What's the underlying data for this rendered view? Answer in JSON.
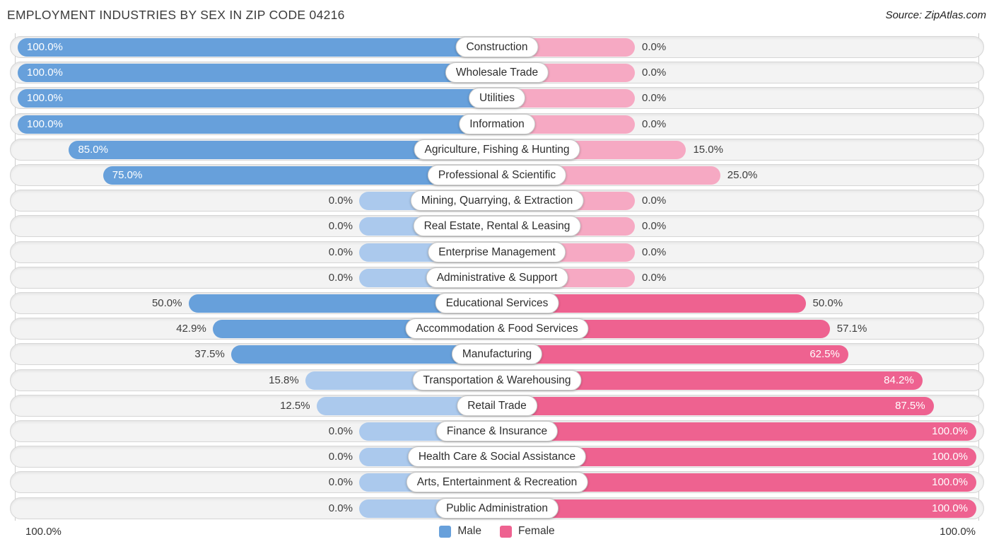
{
  "title": "EMPLOYMENT INDUSTRIES BY SEX IN ZIP CODE 04216",
  "source": "Source: ZipAtlas.com",
  "axis": {
    "left_label": "100.0%",
    "right_label": "100.0%"
  },
  "legend": {
    "male_label": "Male",
    "female_label": "Female"
  },
  "colors": {
    "male": "#67a0db",
    "male_light": "#abc9ed",
    "female": "#ee6290",
    "female_light": "#f6a9c3",
    "track": "#f3f3f3",
    "value_text": "#3d3d3d"
  },
  "chart_data": {
    "type": "bar",
    "orientation": "diverging-horizontal",
    "title": "EMPLOYMENT INDUSTRIES BY SEX IN ZIP CODE 04216",
    "xlim_left_pct": 100.0,
    "xlim_right_pct": 100.0,
    "legend_position": "bottom-center",
    "grid": "edge-lines-only",
    "categories": [
      "Construction",
      "Wholesale Trade",
      "Utilities",
      "Information",
      "Agriculture, Fishing & Hunting",
      "Professional & Scientific",
      "Mining, Quarrying, & Extraction",
      "Real Estate, Rental & Leasing",
      "Enterprise Management",
      "Administrative & Support",
      "Educational Services",
      "Accommodation & Food Services",
      "Manufacturing",
      "Transportation & Warehousing",
      "Retail Trade",
      "Finance & Insurance",
      "Health Care & Social Assistance",
      "Arts, Entertainment & Recreation",
      "Public Administration"
    ],
    "series": [
      {
        "name": "Male",
        "values": [
          100.0,
          100.0,
          100.0,
          100.0,
          85.0,
          75.0,
          0.0,
          0.0,
          0.0,
          0.0,
          50.0,
          42.9,
          37.5,
          15.8,
          12.5,
          0.0,
          0.0,
          0.0,
          0.0
        ],
        "labels": [
          "100.0%",
          "100.0%",
          "100.0%",
          "100.0%",
          "85.0%",
          "75.0%",
          "0.0%",
          "0.0%",
          "0.0%",
          "0.0%",
          "50.0%",
          "42.9%",
          "37.5%",
          "15.8%",
          "12.5%",
          "0.0%",
          "0.0%",
          "0.0%",
          "0.0%"
        ]
      },
      {
        "name": "Female",
        "values": [
          0.0,
          0.0,
          0.0,
          0.0,
          15.0,
          25.0,
          0.0,
          0.0,
          0.0,
          0.0,
          50.0,
          57.1,
          62.5,
          84.2,
          87.5,
          100.0,
          100.0,
          100.0,
          100.0
        ],
        "labels": [
          "0.0%",
          "0.0%",
          "0.0%",
          "0.0%",
          "15.0%",
          "25.0%",
          "0.0%",
          "0.0%",
          "0.0%",
          "0.0%",
          "50.0%",
          "57.1%",
          "62.5%",
          "84.2%",
          "87.5%",
          "100.0%",
          "100.0%",
          "100.0%",
          "100.0%"
        ]
      }
    ]
  }
}
